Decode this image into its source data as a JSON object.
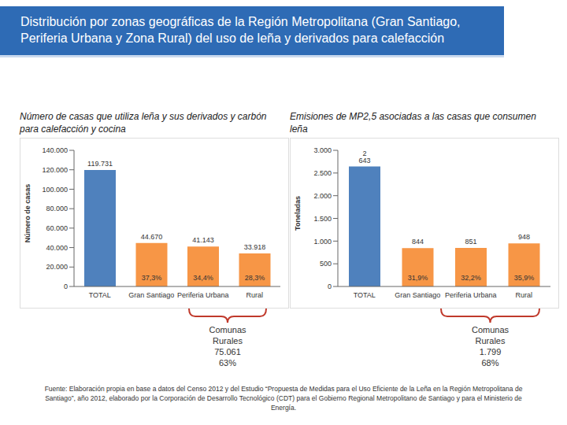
{
  "title": "Distribución por zonas geográficas de la Región Metropolitana (Gran Santiago, Periferia Urbana y Zona Rural) del uso de leña y derivados para calefacción",
  "source": "Fuente: Elaboración propia en base a datos del Censo 2012 y del Estudio “Propuesta de Medidas para el Uso Eficiente de la Leña en la Región Metropolitana de Santiago”, año 2012, elaborado por la Corporación de Desarrollo Tecnológico (CDT) para el Gobierno Regional Metropolitano de Santiago y para el Ministerio de Energía.",
  "chart_data": [
    {
      "type": "bar",
      "title": "Número de casas que utiliza leña y sus derivados y carbón para calefacción y cocina",
      "y_label": "Número de casas",
      "categories": [
        "TOTAL",
        "Gran Santiago",
        "Periferia Urbana",
        "Rural"
      ],
      "values": [
        119731,
        44670,
        41143,
        33918
      ],
      "value_labels": [
        "119.731",
        "44.670",
        "41.143",
        "33.918"
      ],
      "share_values": [
        null,
        37.3,
        34.4,
        28.3
      ],
      "share_labels": [
        null,
        "37,3%",
        "34,4%",
        "28,3%"
      ],
      "colors": [
        "#4f81bd",
        "#f79646",
        "#f79646",
        "#f79646"
      ],
      "ylim": [
        0,
        140000
      ],
      "yticks": [
        0,
        {
          "value": 20000,
          "label": "20.000"
        },
        {
          "value": 40000,
          "label": "40.000"
        },
        {
          "value": 60000,
          "label": "60.000"
        },
        {
          "value": 80000,
          "label": "80.000"
        },
        {
          "value": 100000,
          "label": "100.000"
        },
        {
          "value": 120000,
          "label": "120.000"
        },
        {
          "value": 140000,
          "label": "140.000"
        }
      ],
      "grid": false,
      "data_labels": true,
      "annotation": {
        "label": "Comunas Rurales",
        "value": 75061,
        "value_label": "75.061",
        "share": 63,
        "share_label": "63%"
      }
    },
    {
      "type": "bar",
      "title": "Emisiones de MP2,5 asociadas a las casas que consumen leña",
      "y_label": "Toneladas",
      "categories": [
        "TOTAL",
        "Gran Santiago",
        "Periferia Urbana",
        "Rural"
      ],
      "values": [
        2643,
        844,
        851,
        948
      ],
      "value_labels": [
        "2 643",
        "844",
        "851",
        "948"
      ],
      "share_values": [
        null,
        31.9,
        32.2,
        35.9
      ],
      "share_labels": [
        null,
        "31,9%",
        "32,2%",
        "35,9%"
      ],
      "colors": [
        "#4f81bd",
        "#f79646",
        "#f79646",
        "#f79646"
      ],
      "ylim": [
        0,
        3000
      ],
      "yticks": [
        0,
        500,
        {
          "value": 1000,
          "label": "1.000"
        },
        {
          "value": 1500,
          "label": "1.500"
        },
        {
          "value": 2000,
          "label": "2.000"
        },
        {
          "value": 2500,
          "label": "2.500"
        },
        {
          "value": 3000,
          "label": "3.000"
        }
      ],
      "grid": false,
      "data_labels": true,
      "annotation": {
        "label": "Comunas Rurales",
        "value": 1799,
        "value_label": "1.799",
        "share": 68,
        "share_label": "68%"
      }
    }
  ]
}
